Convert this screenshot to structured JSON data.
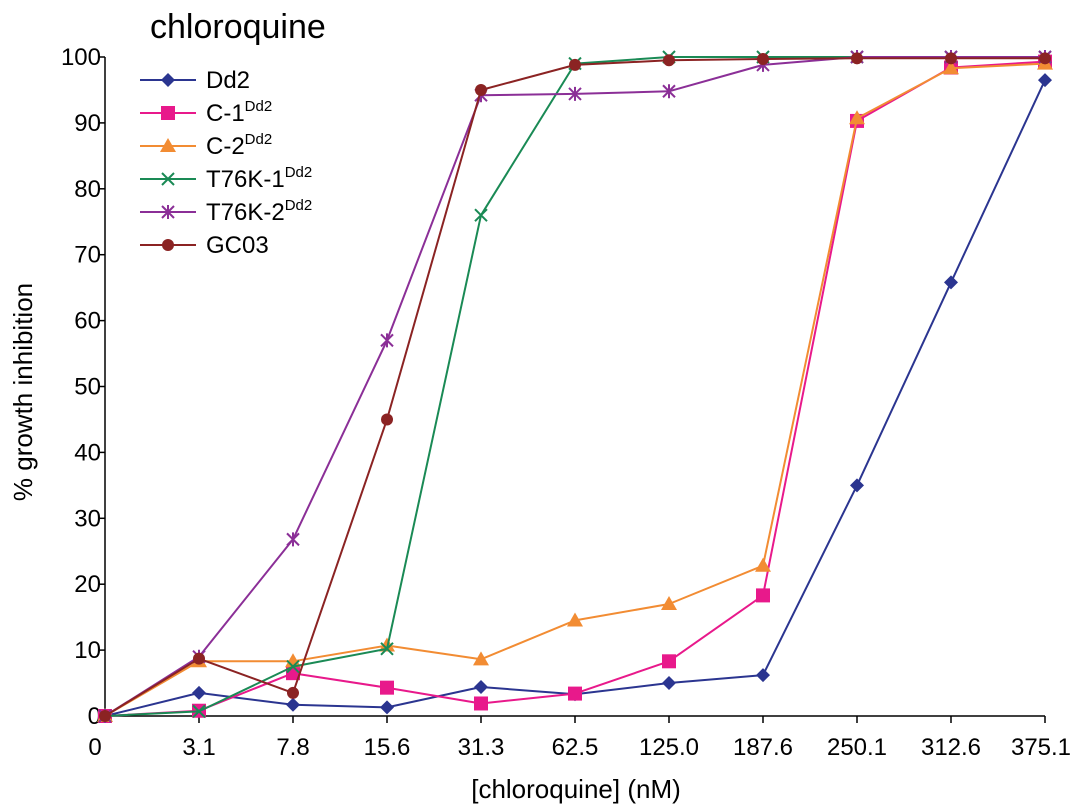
{
  "chart_data": {
    "type": "line",
    "title": "chloroquine",
    "xlabel": "[chloroquine] (nM)",
    "ylabel": "% growth inhibition",
    "ylim": [
      0,
      100
    ],
    "yticks": [
      "0",
      "10",
      "20",
      "30",
      "40",
      "50",
      "60",
      "70",
      "80",
      "90",
      "100"
    ],
    "categories": [
      "0",
      "3.1",
      "7.8",
      "15.6",
      "31.3",
      "62.5",
      "125.0",
      "187.6",
      "250.1",
      "312.6",
      "375.1"
    ],
    "grid": false,
    "legend_position": "top-left",
    "series": [
      {
        "name": "Dd2",
        "sup": "",
        "color": "#2b3590",
        "marker": "diamond",
        "values": [
          0,
          3.5,
          1.7,
          1.3,
          4.4,
          3.3,
          5.0,
          6.2,
          35,
          65.8,
          96.5
        ]
      },
      {
        "name": "C-1",
        "sup": "Dd2",
        "color": "#e8198b",
        "marker": "square",
        "values": [
          0,
          0.8,
          6.5,
          4.3,
          1.9,
          3.4,
          8.3,
          18.3,
          90.3,
          98.4,
          99.3
        ]
      },
      {
        "name": "C-2",
        "sup": "Dd2",
        "color": "#f28c33",
        "marker": "triangle",
        "values": [
          0,
          8.3,
          8.3,
          10.7,
          8.6,
          14.5,
          17.0,
          22.8,
          90.7,
          98.3,
          99.0
        ]
      },
      {
        "name": "T76K-1",
        "sup": "Dd2",
        "color": "#1a8a55",
        "marker": "x",
        "values": [
          0,
          0.7,
          7.5,
          10.2,
          76.0,
          99.0,
          100,
          100,
          100,
          100,
          100
        ]
      },
      {
        "name": "T76K-2",
        "sup": "Dd2",
        "color": "#8b2f97",
        "marker": "star",
        "values": [
          0,
          9.0,
          26.8,
          57.0,
          94.2,
          94.4,
          94.8,
          98.8,
          100,
          100,
          100
        ]
      },
      {
        "name": "GC03",
        "sup": "",
        "color": "#8b2323",
        "marker": "circle",
        "values": [
          0,
          8.7,
          3.5,
          45.0,
          95.0,
          98.8,
          99.5,
          99.7,
          99.8,
          99.8,
          99.8
        ]
      }
    ]
  }
}
